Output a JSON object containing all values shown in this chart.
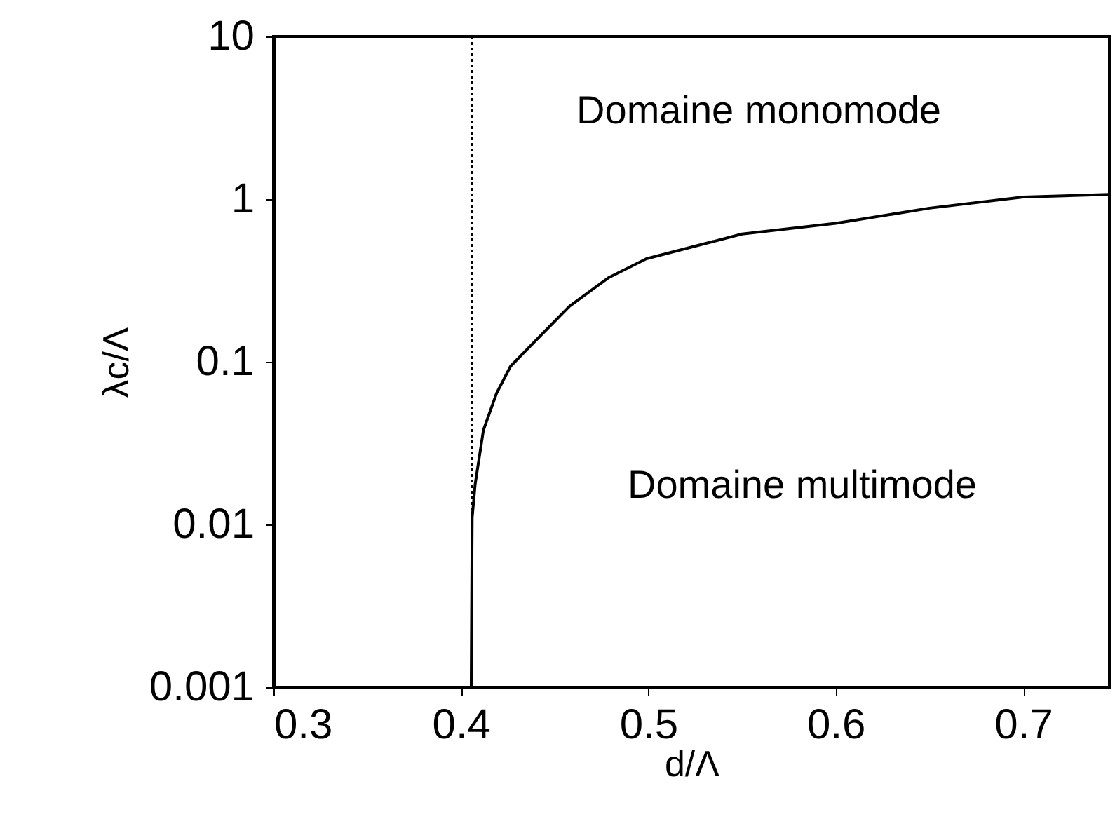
{
  "chart_data": {
    "type": "line",
    "xlabel": "d/Λ",
    "ylabel": "λc/Λ",
    "xlim": [
      0.3,
      0.746
    ],
    "xticks": [
      0.3,
      0.4,
      0.5,
      0.6,
      0.7
    ],
    "ylim": [
      0.001,
      10
    ],
    "yticks": [
      0.001,
      0.01,
      0.1,
      1,
      10
    ],
    "log": true,
    "series": [
      {
        "color": "#000000",
        "x": [
          0.4055,
          0.406,
          0.4076,
          0.412,
          0.419,
          0.4265,
          0.448,
          0.458,
          0.479,
          0.499,
          0.55,
          0.6,
          0.65,
          0.7,
          0.746
        ],
        "values": [
          0.001,
          0.011,
          0.0177,
          0.038,
          0.064,
          0.094,
          0.168,
          0.22,
          0.33,
          0.43,
          0.61,
          0.71,
          0.88,
          1.03,
          1.07
        ]
      }
    ],
    "ref_lines": [
      {
        "axis": "x",
        "value": 0.406,
        "line_style": "dotted",
        "color": "#000000"
      }
    ],
    "annotations": [
      "Domaine monomode",
      "Domaine multimode"
    ]
  }
}
